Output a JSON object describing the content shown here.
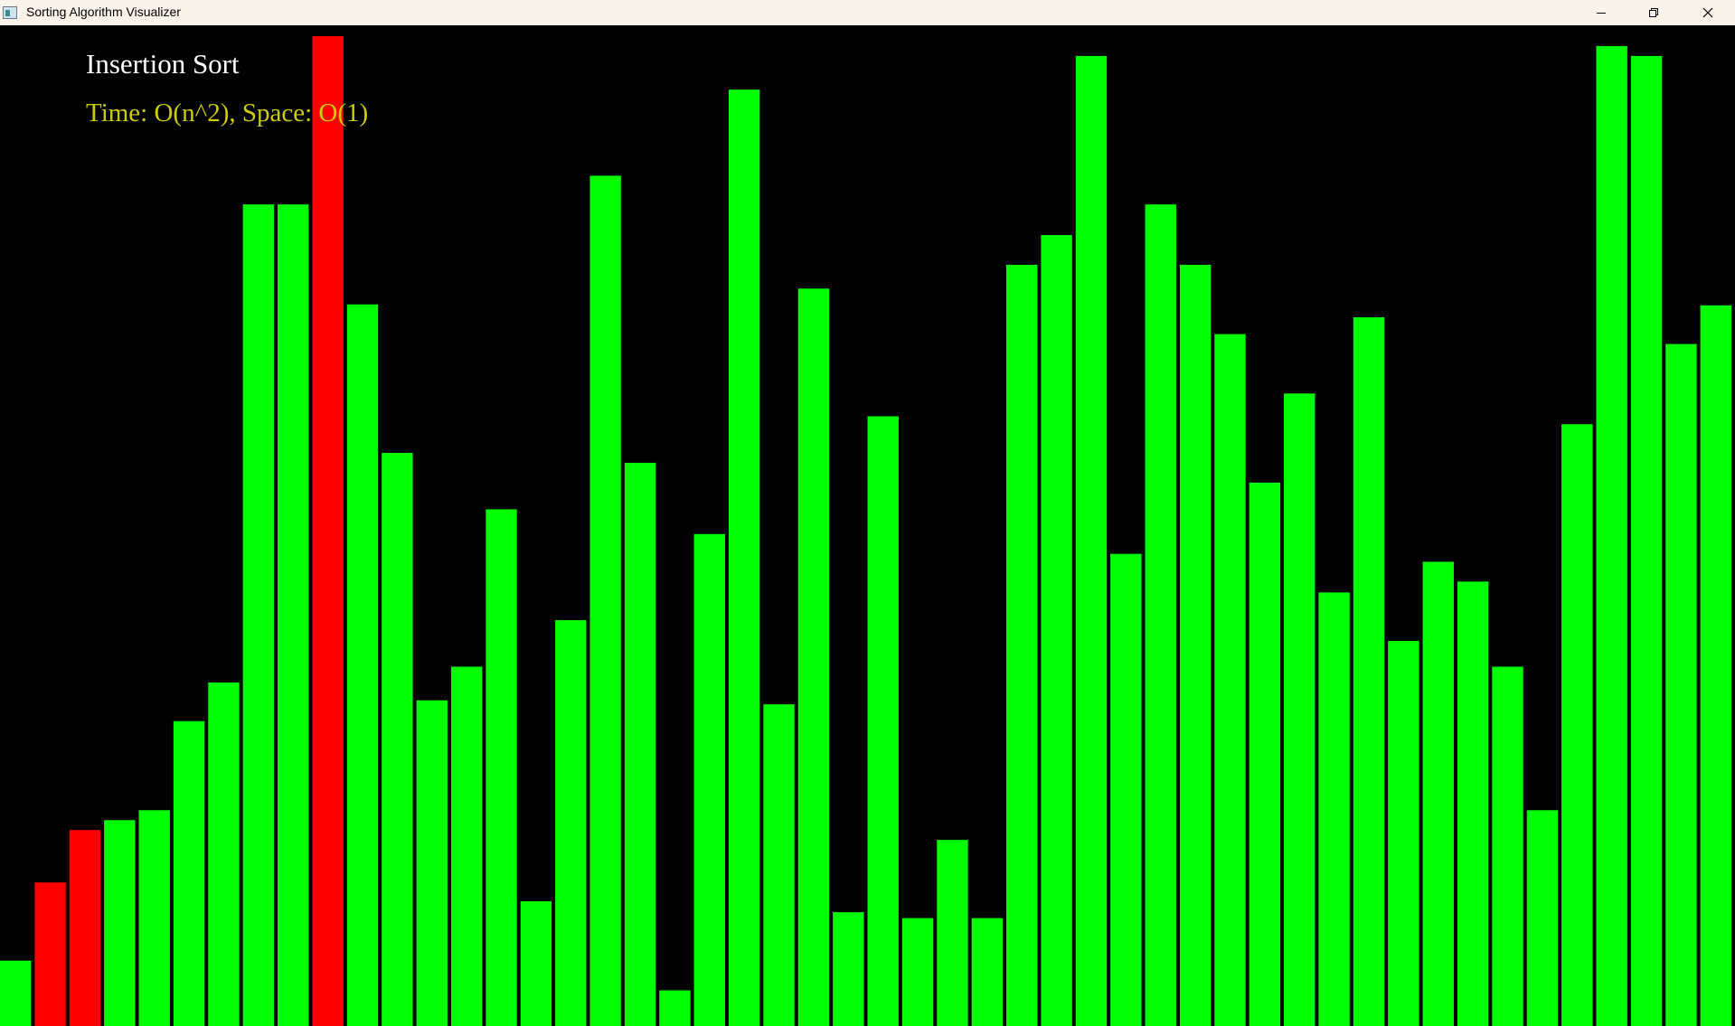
{
  "window": {
    "title": "Sorting Algorithm Visualizer"
  },
  "icons": {
    "app": "app-icon",
    "minimize": "minimize-icon",
    "maximize": "restore-icon",
    "close": "close-icon"
  },
  "visualizer": {
    "algorithm_name": "Insertion Sort",
    "complexity": "Time: O(n^2), Space: O(1)",
    "colors": {
      "background": "#000000",
      "bar_default": "#00ff00",
      "bar_highlight": "#ff0000",
      "title_text": "#ffffff",
      "complexity_text": "#cccc00"
    },
    "highlighted_indices": [
      1,
      2,
      9
    ]
  },
  "chart_data": {
    "type": "bar",
    "values": [
      66,
      145,
      198,
      208,
      218,
      308,
      347,
      830,
      830,
      1000,
      729,
      579,
      329,
      363,
      522,
      126,
      410,
      859,
      569,
      36,
      497,
      946,
      325,
      745,
      115,
      616,
      109,
      188,
      109,
      769,
      799,
      980,
      477,
      830,
      769,
      699,
      549,
      639,
      438,
      716,
      389,
      469,
      449,
      363,
      218,
      608,
      990,
      980,
      689,
      728
    ],
    "ylim": [
      0,
      1000
    ]
  }
}
